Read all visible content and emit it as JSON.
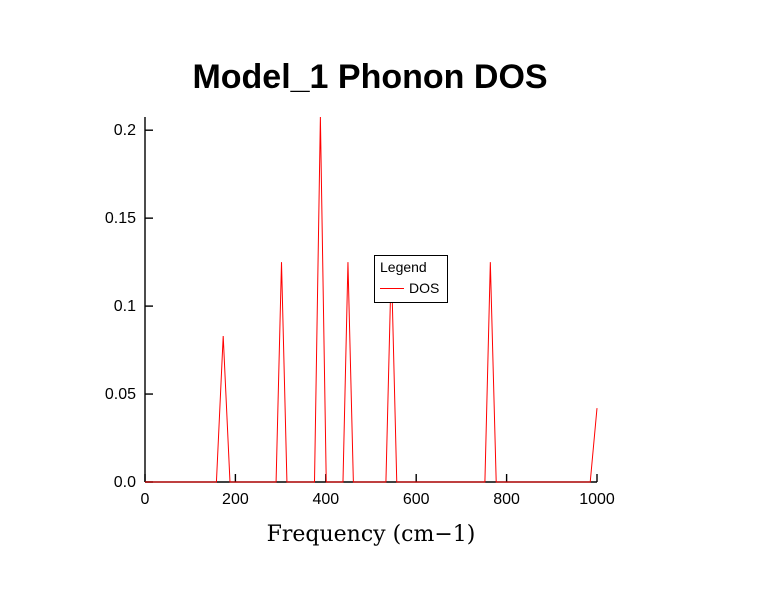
{
  "page": {
    "background": "#ffffff"
  },
  "chart_data": {
    "type": "line",
    "title": "Model_1 Phonon DOS",
    "xlabel": "Frequency (cm−1)",
    "ylabel": "",
    "xlim": [
      0,
      1000
    ],
    "ylim": [
      0,
      0.2075
    ],
    "grid": false,
    "axis_color": "#000000",
    "xticks": {
      "values": [
        0,
        200,
        400,
        600,
        800,
        1000
      ],
      "labels": [
        "0",
        "200",
        "400",
        "600",
        "800",
        "1000"
      ]
    },
    "yticks": {
      "values": [
        0,
        0.05,
        0.1,
        0.15,
        0.2
      ],
      "labels": [
        "0.0",
        "0.05",
        "0.1",
        "0.15",
        "0.2"
      ]
    },
    "legend": {
      "title": "Legend",
      "position": "center",
      "entries": [
        {
          "label": "DOS",
          "color": "#ff0000"
        }
      ]
    },
    "series": [
      {
        "name": "DOS",
        "color": "#ff0000",
        "points": [
          [
            0,
            0
          ],
          [
            158,
            0
          ],
          [
            173,
            0.083
          ],
          [
            188,
            0
          ],
          [
            290,
            0
          ],
          [
            302,
            0.125
          ],
          [
            314,
            0
          ],
          [
            375,
            0
          ],
          [
            388,
            0.2075
          ],
          [
            401,
            0
          ],
          [
            438,
            0
          ],
          [
            449,
            0.125
          ],
          [
            461,
            0
          ],
          [
            533,
            0
          ],
          [
            545,
            0.125
          ],
          [
            557,
            0
          ],
          [
            752,
            0
          ],
          [
            764,
            0.125
          ],
          [
            777,
            0
          ],
          [
            985,
            0
          ],
          [
            1000,
            0.042
          ]
        ]
      }
    ]
  }
}
